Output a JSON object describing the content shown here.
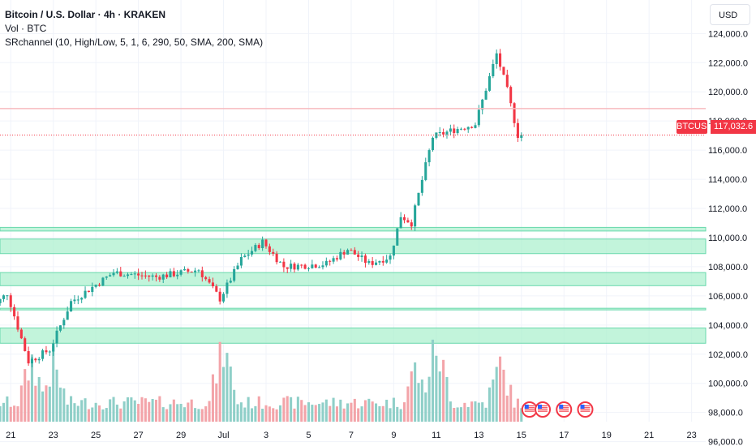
{
  "legend": {
    "title": "Bitcoin / U.S. Dollar · 4h · KRAKEN",
    "volume": "Vol · BTC",
    "indicator": "SRchannel (10, High/Low, 5, 1, 6, 290, 50, SMA, 200, SMA)"
  },
  "currency_button": "USD",
  "last_price": {
    "symbol": "BTCUSD",
    "value": "117,032.6"
  },
  "colors": {
    "up": "#26a69a",
    "down": "#f23645",
    "volume_up": "#8fcfc8",
    "volume_down": "#f3a4a9",
    "sr_zone": "#a8f0cc",
    "sr_line": "#68d8ac",
    "resistance_line": "#f7b9be",
    "grid": "#f0f3fa"
  },
  "chart_data": {
    "type": "candlestick",
    "y_axis": {
      "ticks": [
        96000,
        98000,
        100000,
        102000,
        104000,
        106000,
        108000,
        110000,
        112000,
        114000,
        116000,
        118000,
        120000,
        122000,
        124000
      ],
      "tick_labels": [
        "96,000.0",
        "98,000.0",
        "100,000.0",
        "102,000.0",
        "104,000.0",
        "106,000.0",
        "108,000.0",
        "110,000.0",
        "112,000.0",
        "114,000.0",
        "116,000.0",
        "118,000.0",
        "120,000.0",
        "122,000.0",
        "124,000.0"
      ],
      "ylim": [
        95700,
        126300
      ]
    },
    "x_axis": {
      "tick_labels": [
        "21",
        "23",
        "25",
        "27",
        "29",
        "Jul",
        "3",
        "5",
        "7",
        "9",
        "11",
        "13",
        "15",
        "17",
        "19",
        "21",
        "23"
      ],
      "start": "2025-06-20",
      "end": "2025-07-23"
    },
    "last_price": 117032.6,
    "resistance_line": 118850,
    "sr_zones": [
      [
        110450,
        110700
      ],
      [
        108900,
        109900
      ],
      [
        106700,
        107600
      ],
      [
        105050,
        105150
      ],
      [
        102750,
        103800
      ]
    ],
    "key_points": [
      {
        "date": "2025-06-20",
        "price": 104700
      },
      {
        "date": "2025-06-21",
        "price": 106200
      },
      {
        "date": "2025-06-22",
        "price": 101500
      },
      {
        "date": "2025-06-23",
        "price": 102300
      },
      {
        "date": "2025-06-24",
        "price": 105600
      },
      {
        "date": "2025-06-26",
        "price": 107600
      },
      {
        "date": "2025-06-28",
        "price": 107300
      },
      {
        "date": "2025-06-30",
        "price": 107800
      },
      {
        "date": "2025-07-01",
        "price": 105800
      },
      {
        "date": "2025-07-02",
        "price": 108500
      },
      {
        "date": "2025-07-03",
        "price": 109700
      },
      {
        "date": "2025-07-04",
        "price": 108000
      },
      {
        "date": "2025-07-06",
        "price": 108200
      },
      {
        "date": "2025-07-07",
        "price": 109200
      },
      {
        "date": "2025-07-08",
        "price": 108200
      },
      {
        "date": "2025-07-09",
        "price": 108700
      },
      {
        "date": "2025-07-09T12",
        "price": 111500
      },
      {
        "date": "2025-07-10",
        "price": 111000
      },
      {
        "date": "2025-07-11",
        "price": 116900
      },
      {
        "date": "2025-07-12",
        "price": 117400
      },
      {
        "date": "2025-07-13",
        "price": 117800
      },
      {
        "date": "2025-07-14",
        "price": 122600
      },
      {
        "date": "2025-07-14T12",
        "price": 120100
      },
      {
        "date": "2025-07-15",
        "price": 117032.6
      }
    ],
    "volume_key_points": [
      {
        "date": "2025-06-22",
        "volume": 0.8
      },
      {
        "date": "2025-06-23",
        "volume": 0.75
      },
      {
        "date": "2025-07-01",
        "volume": 0.95
      },
      {
        "date": "2025-07-10",
        "volume": 0.7
      },
      {
        "date": "2025-07-11",
        "volume": 1.0
      },
      {
        "date": "2025-07-14",
        "volume": 0.75
      }
    ],
    "events": [
      "2025-07-15",
      "2025-07-16",
      "2025-07-17",
      "2025-07-18"
    ]
  }
}
